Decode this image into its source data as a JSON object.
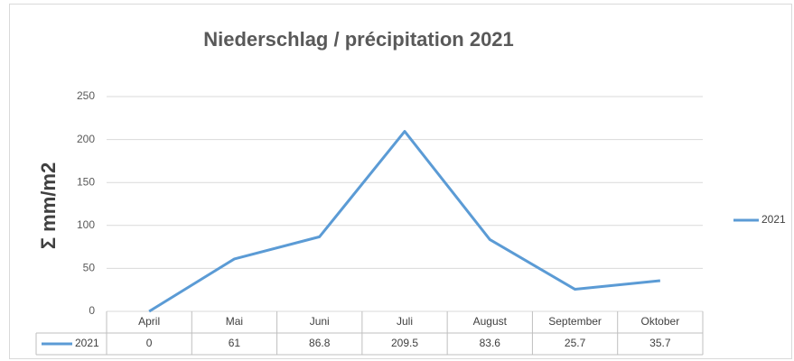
{
  "chart_data": {
    "type": "line",
    "title": "Niederschlag / précipitation 2021",
    "ylabel": "Σ mm/m2",
    "categories": [
      "April",
      "Mai",
      "Juni",
      "Juli",
      "August",
      "September",
      "Oktober"
    ],
    "series": [
      {
        "name": "2021",
        "color": "#5b9bd5",
        "values": [
          0,
          61,
          86.8,
          209.5,
          83.6,
          25.7,
          35.7
        ]
      }
    ],
    "ylim": [
      0,
      250
    ],
    "yticks": [
      0,
      50,
      100,
      150,
      200,
      250
    ],
    "grid": true,
    "legend": "right",
    "data_table": true
  }
}
